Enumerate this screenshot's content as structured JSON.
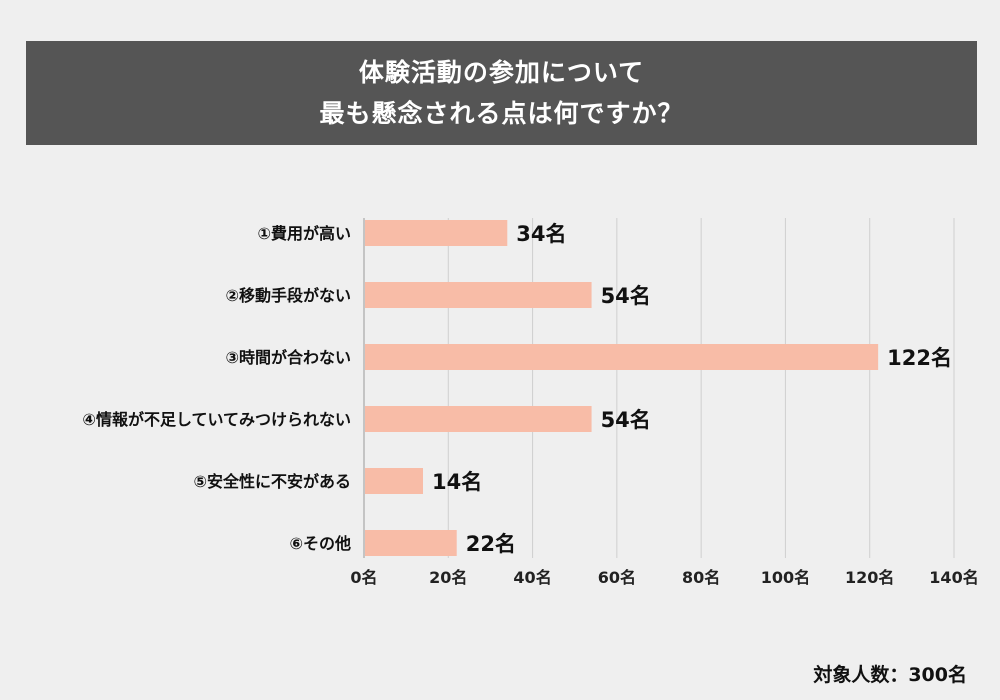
{
  "title": {
    "line1": "体験活動の参加について",
    "line2": "最も懸念される点は何ですか？"
  },
  "footer": {
    "respondents": "対象人数：300名"
  },
  "colors": {
    "bar": "#f8bca7",
    "banner": "#555555",
    "grid": "#cfcfcf",
    "background": "#efefef"
  },
  "chart_data": {
    "type": "bar",
    "orientation": "horizontal",
    "title": "体験活動の参加について最も懸念される点は何ですか？",
    "categories": [
      "①費用が高い",
      "②移動手段がない",
      "③時間が合わない",
      "④情報が不足していてみつけられない",
      "⑤安全性に不安がある",
      "⑥その他"
    ],
    "values": [
      34,
      54,
      122,
      54,
      14,
      22
    ],
    "value_labels": [
      "34名",
      "54名",
      "122名",
      "54名",
      "14名",
      "22名"
    ],
    "unit": "名",
    "xlim": [
      0,
      140
    ],
    "xticks": [
      0,
      20,
      40,
      60,
      80,
      100,
      120,
      140
    ],
    "xtick_labels": [
      "0名",
      "20名",
      "40名",
      "60名",
      "80名",
      "100名",
      "120名",
      "140名"
    ],
    "grid": true
  }
}
